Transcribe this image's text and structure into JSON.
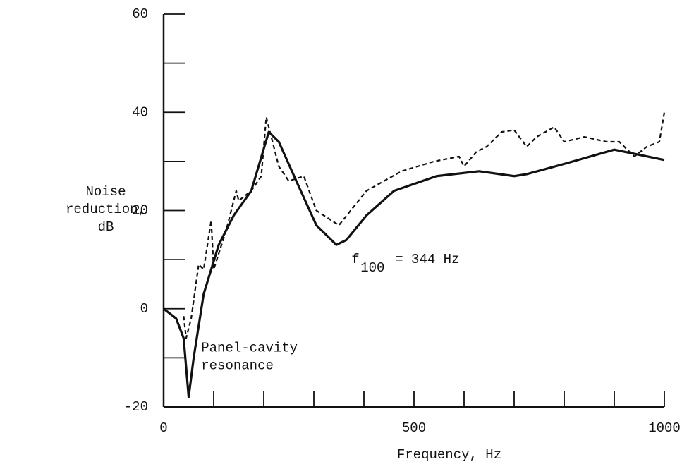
{
  "chart_data": {
    "type": "line",
    "ylabel": [
      "Noise",
      "reduction,",
      "dB"
    ],
    "xlabel": "Frequency, Hz",
    "xlim": [
      0,
      1000
    ],
    "ylim": [
      -20,
      60
    ],
    "xticks": [
      0,
      500,
      1000
    ],
    "xminor": [
      100,
      200,
      300,
      400,
      600,
      700,
      800,
      900
    ],
    "yticks": [
      -20,
      0,
      20,
      40,
      60
    ],
    "yminor": [
      -10,
      10,
      30,
      50
    ],
    "annotations": [
      {
        "lines": [
          "Panel-cavity",
          "resonance"
        ],
        "x": 75,
        "y": -8
      },
      {
        "text": "f",
        "sub": "100",
        "rest": "= 344 Hz",
        "x": 375,
        "y": 10
      }
    ],
    "series": [
      {
        "color": "#111111",
        "dash": false,
        "x": [
          0,
          25,
          40,
          50,
          60,
          80,
          110,
          140,
          175,
          210,
          230,
          265,
          305,
          345,
          365,
          405,
          460,
          545,
          630,
          700,
          725,
          800,
          900,
          1000
        ],
        "values": [
          0,
          -2,
          -6,
          -18,
          -10,
          3,
          13,
          19,
          24,
          36,
          34,
          26,
          17,
          13,
          14,
          19,
          24,
          27,
          28,
          27,
          27.4,
          29.5,
          32.4,
          30.3
        ]
      },
      {
        "color": "#111111",
        "dash": true,
        "x": [
          40,
          45,
          55,
          70,
          80,
          95,
          100,
          125,
          145,
          150,
          175,
          195,
          205,
          230,
          250,
          280,
          305,
          350,
          405,
          475,
          540,
          590,
          600,
          625,
          645,
          675,
          700,
          725,
          745,
          780,
          800,
          840,
          885,
          910,
          940,
          965,
          990,
          1000
        ],
        "values": [
          -1.5,
          -6,
          -2,
          9,
          8,
          18,
          8,
          16,
          24,
          22,
          24,
          27,
          39,
          29,
          26,
          27,
          20,
          17,
          24,
          28,
          30,
          31,
          29,
          32,
          33,
          36,
          36.4,
          33,
          35,
          37,
          34,
          35,
          34,
          34,
          31,
          33,
          34,
          40
        ]
      }
    ]
  }
}
